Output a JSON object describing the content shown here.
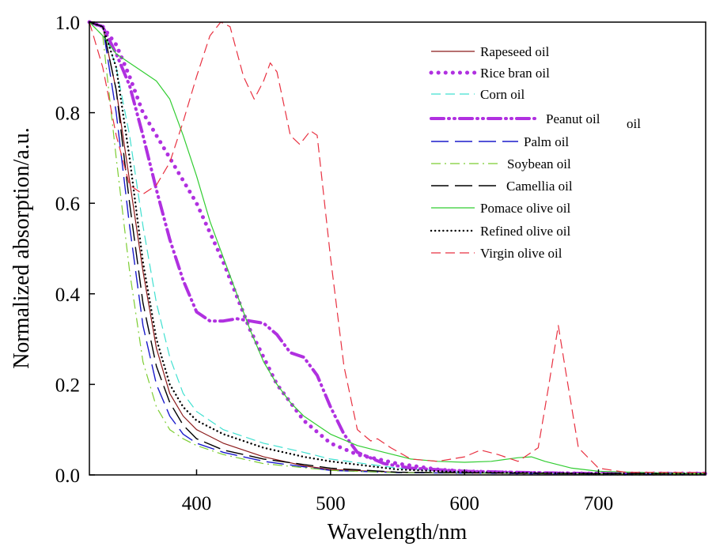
{
  "chart_data": {
    "type": "line",
    "title": "",
    "xlabel": "Wavelength/nm",
    "ylabel": "Normalized absorption/a.u.",
    "xlim": [
      320,
      780
    ],
    "ylim": [
      0,
      1.0
    ],
    "x_ticks": [
      400,
      500,
      600,
      700
    ],
    "y_ticks": [
      0.0,
      0.2,
      0.4,
      0.6,
      0.8,
      1.0
    ],
    "x_tick_labels": [
      "400",
      "500",
      "600",
      "700"
    ],
    "y_tick_labels": [
      "0.0",
      "0.2",
      "0.4",
      "0.6",
      "0.8",
      "1.0"
    ],
    "grid": false,
    "legend_position": "top-right",
    "series": [
      {
        "name": "Rapeseed oil",
        "color": "#8b1a1a",
        "style": "solid",
        "points": [
          [
            320,
            1.0
          ],
          [
            330,
            0.99
          ],
          [
            340,
            0.85
          ],
          [
            350,
            0.65
          ],
          [
            360,
            0.45
          ],
          [
            370,
            0.28
          ],
          [
            380,
            0.18
          ],
          [
            390,
            0.13
          ],
          [
            400,
            0.1
          ],
          [
            420,
            0.07
          ],
          [
            450,
            0.04
          ],
          [
            480,
            0.02
          ],
          [
            500,
            0.012
          ],
          [
            550,
            0.006
          ],
          [
            600,
            0.004
          ],
          [
            700,
            0.002
          ],
          [
            780,
            0.002
          ]
        ]
      },
      {
        "name": "Rice bran oil",
        "color": "#b030e0",
        "style": "dotted-thick",
        "points": [
          [
            320,
            1.0
          ],
          [
            330,
            0.99
          ],
          [
            340,
            0.95
          ],
          [
            350,
            0.88
          ],
          [
            360,
            0.8
          ],
          [
            380,
            0.7
          ],
          [
            400,
            0.6
          ],
          [
            420,
            0.47
          ],
          [
            440,
            0.32
          ],
          [
            460,
            0.2
          ],
          [
            480,
            0.12
          ],
          [
            500,
            0.07
          ],
          [
            520,
            0.045
          ],
          [
            550,
            0.025
          ],
          [
            580,
            0.012
          ],
          [
            600,
            0.008
          ],
          [
            650,
            0.004
          ],
          [
            700,
            0.003
          ],
          [
            780,
            0.003
          ]
        ]
      },
      {
        "name": "Corn oil",
        "color": "#40e0d0",
        "style": "dashed",
        "points": [
          [
            320,
            1.0
          ],
          [
            330,
            0.99
          ],
          [
            340,
            0.9
          ],
          [
            350,
            0.75
          ],
          [
            360,
            0.55
          ],
          [
            370,
            0.38
          ],
          [
            380,
            0.26
          ],
          [
            390,
            0.18
          ],
          [
            400,
            0.14
          ],
          [
            420,
            0.1
          ],
          [
            450,
            0.07
          ],
          [
            480,
            0.05
          ],
          [
            500,
            0.035
          ],
          [
            550,
            0.015
          ],
          [
            600,
            0.006
          ],
          [
            700,
            0.003
          ],
          [
            780,
            0.003
          ]
        ]
      },
      {
        "name": "Peanut oil",
        "color": "#b030e0",
        "style": "dash-dot-dot-thick",
        "points": [
          [
            320,
            1.0
          ],
          [
            330,
            0.99
          ],
          [
            340,
            0.93
          ],
          [
            350,
            0.86
          ],
          [
            360,
            0.75
          ],
          [
            370,
            0.63
          ],
          [
            380,
            0.52
          ],
          [
            390,
            0.43
          ],
          [
            400,
            0.36
          ],
          [
            410,
            0.34
          ],
          [
            420,
            0.34
          ],
          [
            430,
            0.345
          ],
          [
            440,
            0.34
          ],
          [
            450,
            0.335
          ],
          [
            460,
            0.31
          ],
          [
            470,
            0.27
          ],
          [
            480,
            0.26
          ],
          [
            490,
            0.22
          ],
          [
            500,
            0.15
          ],
          [
            510,
            0.09
          ],
          [
            520,
            0.05
          ],
          [
            540,
            0.025
          ],
          [
            560,
            0.015
          ],
          [
            600,
            0.008
          ],
          [
            650,
            0.005
          ],
          [
            700,
            0.003
          ],
          [
            780,
            0.003
          ]
        ]
      },
      {
        "name": "Palm oil",
        "color": "#1a1acc",
        "style": "long-dash",
        "points": [
          [
            320,
            1.0
          ],
          [
            330,
            0.99
          ],
          [
            340,
            0.8
          ],
          [
            350,
            0.55
          ],
          [
            360,
            0.33
          ],
          [
            370,
            0.2
          ],
          [
            380,
            0.13
          ],
          [
            390,
            0.09
          ],
          [
            400,
            0.07
          ],
          [
            420,
            0.05
          ],
          [
            450,
            0.03
          ],
          [
            500,
            0.01
          ],
          [
            550,
            0.005
          ],
          [
            700,
            0.002
          ],
          [
            780,
            0.002
          ]
        ]
      },
      {
        "name": "Soybean oil",
        "color": "#7ccd32",
        "style": "dash-dot",
        "points": [
          [
            320,
            1.0
          ],
          [
            330,
            0.97
          ],
          [
            340,
            0.7
          ],
          [
            350,
            0.45
          ],
          [
            360,
            0.25
          ],
          [
            370,
            0.15
          ],
          [
            380,
            0.1
          ],
          [
            390,
            0.08
          ],
          [
            400,
            0.065
          ],
          [
            420,
            0.045
          ],
          [
            450,
            0.025
          ],
          [
            500,
            0.01
          ],
          [
            550,
            0.005
          ],
          [
            700,
            0.002
          ],
          [
            780,
            0.002
          ]
        ]
      },
      {
        "name": "Camellia oil",
        "color": "#000000",
        "style": "long-dash",
        "points": [
          [
            320,
            1.0
          ],
          [
            330,
            0.99
          ],
          [
            340,
            0.85
          ],
          [
            350,
            0.6
          ],
          [
            360,
            0.38
          ],
          [
            370,
            0.24
          ],
          [
            380,
            0.16
          ],
          [
            390,
            0.11
          ],
          [
            400,
            0.08
          ],
          [
            420,
            0.055
          ],
          [
            450,
            0.035
          ],
          [
            500,
            0.015
          ],
          [
            550,
            0.006
          ],
          [
            700,
            0.003
          ],
          [
            780,
            0.003
          ]
        ]
      },
      {
        "name": "Pomace olive oil",
        "color": "#32cd32",
        "style": "solid",
        "points": [
          [
            320,
            1.0
          ],
          [
            330,
            0.97
          ],
          [
            340,
            0.93
          ],
          [
            350,
            0.91
          ],
          [
            360,
            0.89
          ],
          [
            370,
            0.87
          ],
          [
            380,
            0.83
          ],
          [
            390,
            0.75
          ],
          [
            400,
            0.66
          ],
          [
            410,
            0.56
          ],
          [
            420,
            0.48
          ],
          [
            430,
            0.4
          ],
          [
            440,
            0.32
          ],
          [
            450,
            0.25
          ],
          [
            460,
            0.2
          ],
          [
            470,
            0.16
          ],
          [
            480,
            0.13
          ],
          [
            490,
            0.11
          ],
          [
            500,
            0.09
          ],
          [
            520,
            0.065
          ],
          [
            540,
            0.05
          ],
          [
            560,
            0.035
          ],
          [
            580,
            0.03
          ],
          [
            600,
            0.028
          ],
          [
            620,
            0.03
          ],
          [
            640,
            0.038
          ],
          [
            650,
            0.04
          ],
          [
            660,
            0.03
          ],
          [
            680,
            0.015
          ],
          [
            700,
            0.008
          ],
          [
            750,
            0.004
          ],
          [
            780,
            0.003
          ]
        ]
      },
      {
        "name": "Refined olive oil",
        "color": "#000000",
        "style": "dotted",
        "points": [
          [
            320,
            1.0
          ],
          [
            330,
            0.99
          ],
          [
            340,
            0.9
          ],
          [
            350,
            0.7
          ],
          [
            360,
            0.47
          ],
          [
            370,
            0.3
          ],
          [
            380,
            0.2
          ],
          [
            390,
            0.15
          ],
          [
            400,
            0.12
          ],
          [
            420,
            0.09
          ],
          [
            450,
            0.06
          ],
          [
            480,
            0.04
          ],
          [
            500,
            0.03
          ],
          [
            550,
            0.012
          ],
          [
            600,
            0.006
          ],
          [
            700,
            0.003
          ],
          [
            780,
            0.003
          ]
        ]
      },
      {
        "name": "Virgin olive oil",
        "color": "#e83040",
        "style": "dashed",
        "points": [
          [
            320,
            1.0
          ],
          [
            330,
            0.9
          ],
          [
            340,
            0.75
          ],
          [
            350,
            0.64
          ],
          [
            360,
            0.62
          ],
          [
            370,
            0.64
          ],
          [
            380,
            0.69
          ],
          [
            390,
            0.78
          ],
          [
            400,
            0.88
          ],
          [
            410,
            0.97
          ],
          [
            418,
            1.0
          ],
          [
            425,
            0.99
          ],
          [
            435,
            0.88
          ],
          [
            443,
            0.83
          ],
          [
            450,
            0.87
          ],
          [
            455,
            0.91
          ],
          [
            460,
            0.89
          ],
          [
            470,
            0.75
          ],
          [
            477,
            0.73
          ],
          [
            485,
            0.76
          ],
          [
            490,
            0.75
          ],
          [
            500,
            0.48
          ],
          [
            510,
            0.24
          ],
          [
            520,
            0.1
          ],
          [
            530,
            0.075
          ],
          [
            535,
            0.08
          ],
          [
            545,
            0.06
          ],
          [
            560,
            0.035
          ],
          [
            580,
            0.03
          ],
          [
            600,
            0.04
          ],
          [
            612,
            0.055
          ],
          [
            625,
            0.045
          ],
          [
            640,
            0.03
          ],
          [
            655,
            0.06
          ],
          [
            663,
            0.2
          ],
          [
            670,
            0.33
          ],
          [
            676,
            0.22
          ],
          [
            685,
            0.06
          ],
          [
            700,
            0.015
          ],
          [
            720,
            0.006
          ],
          [
            780,
            0.005
          ]
        ]
      }
    ]
  },
  "legend": {
    "extra_label": "oil"
  }
}
